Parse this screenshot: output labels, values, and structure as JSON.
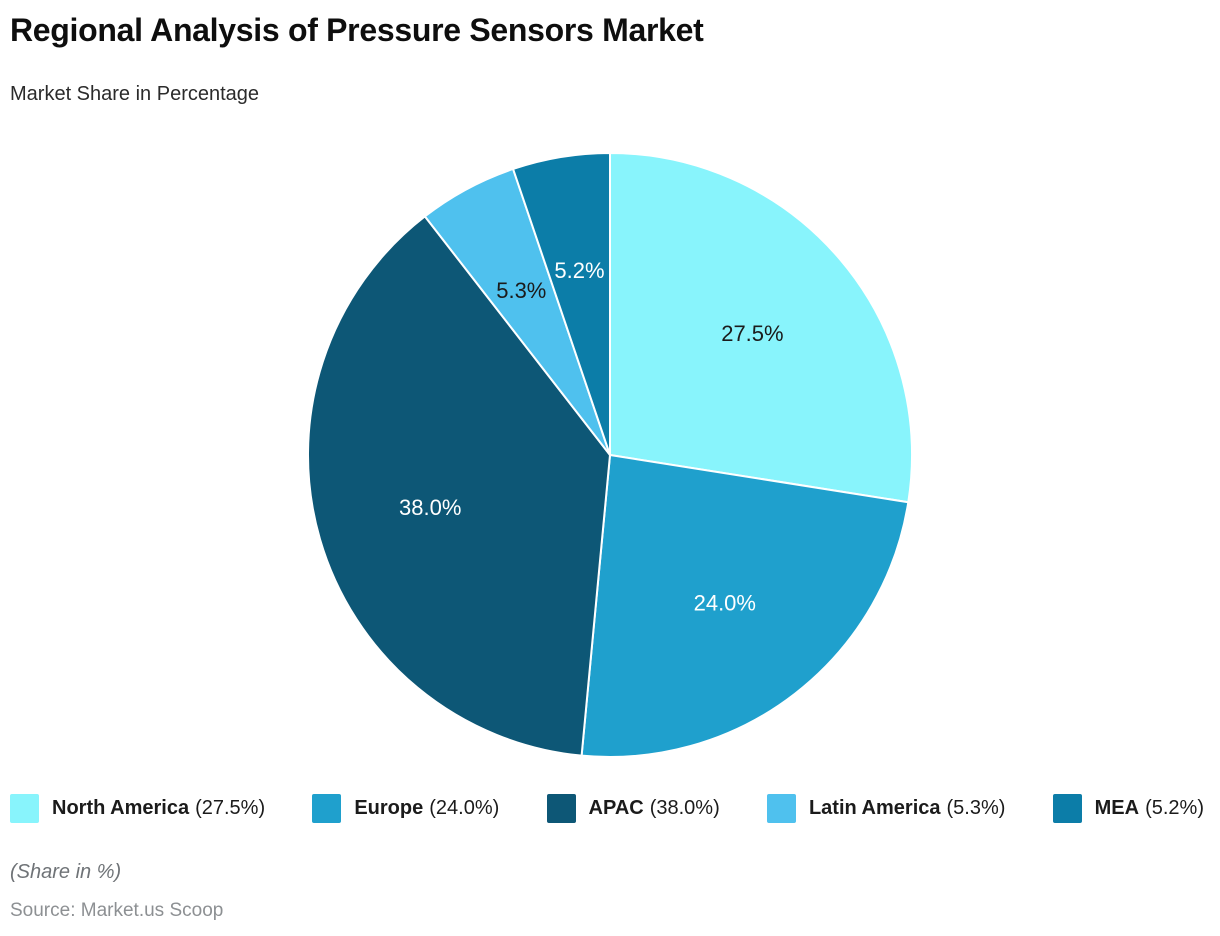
{
  "header": {
    "title": "Regional Analysis of Pressure Sensors Market",
    "subtitle": "Market Share in Percentage"
  },
  "chart_data": {
    "type": "pie",
    "title": "Regional Analysis of Pressure Sensors Market",
    "subtitle": "Market Share in Percentage",
    "unit": "percent",
    "start_angle": "top",
    "direction": "clockwise",
    "legend_position": "bottom",
    "slices": [
      {
        "label": "North America",
        "value": 27.5,
        "value_label": "27.5%",
        "legend_label": "(27.5%)",
        "color": "#88F4FC",
        "value_label_color": "#1b1b1b"
      },
      {
        "label": "Europe",
        "value": 24.0,
        "value_label": "24.0%",
        "legend_label": "(24.0%)",
        "color": "#1FA0CD",
        "value_label_color": "#ffffff"
      },
      {
        "label": "APAC",
        "value": 38.0,
        "value_label": "38.0%",
        "legend_label": "(38.0%)",
        "color": "#0D5776",
        "value_label_color": "#ffffff"
      },
      {
        "label": "Latin America",
        "value": 5.3,
        "value_label": "5.3%",
        "legend_label": "(5.3%)",
        "color": "#4FC1EE",
        "value_label_color": "#1b1b1b"
      },
      {
        "label": "MEA",
        "value": 5.2,
        "value_label": "5.2%",
        "legend_label": "(5.2%)",
        "color": "#0C7DA8",
        "value_label_color": "#ffffff"
      }
    ]
  },
  "footer": {
    "share_note": "(Share in %)",
    "source": "Source: Market.us Scoop"
  }
}
